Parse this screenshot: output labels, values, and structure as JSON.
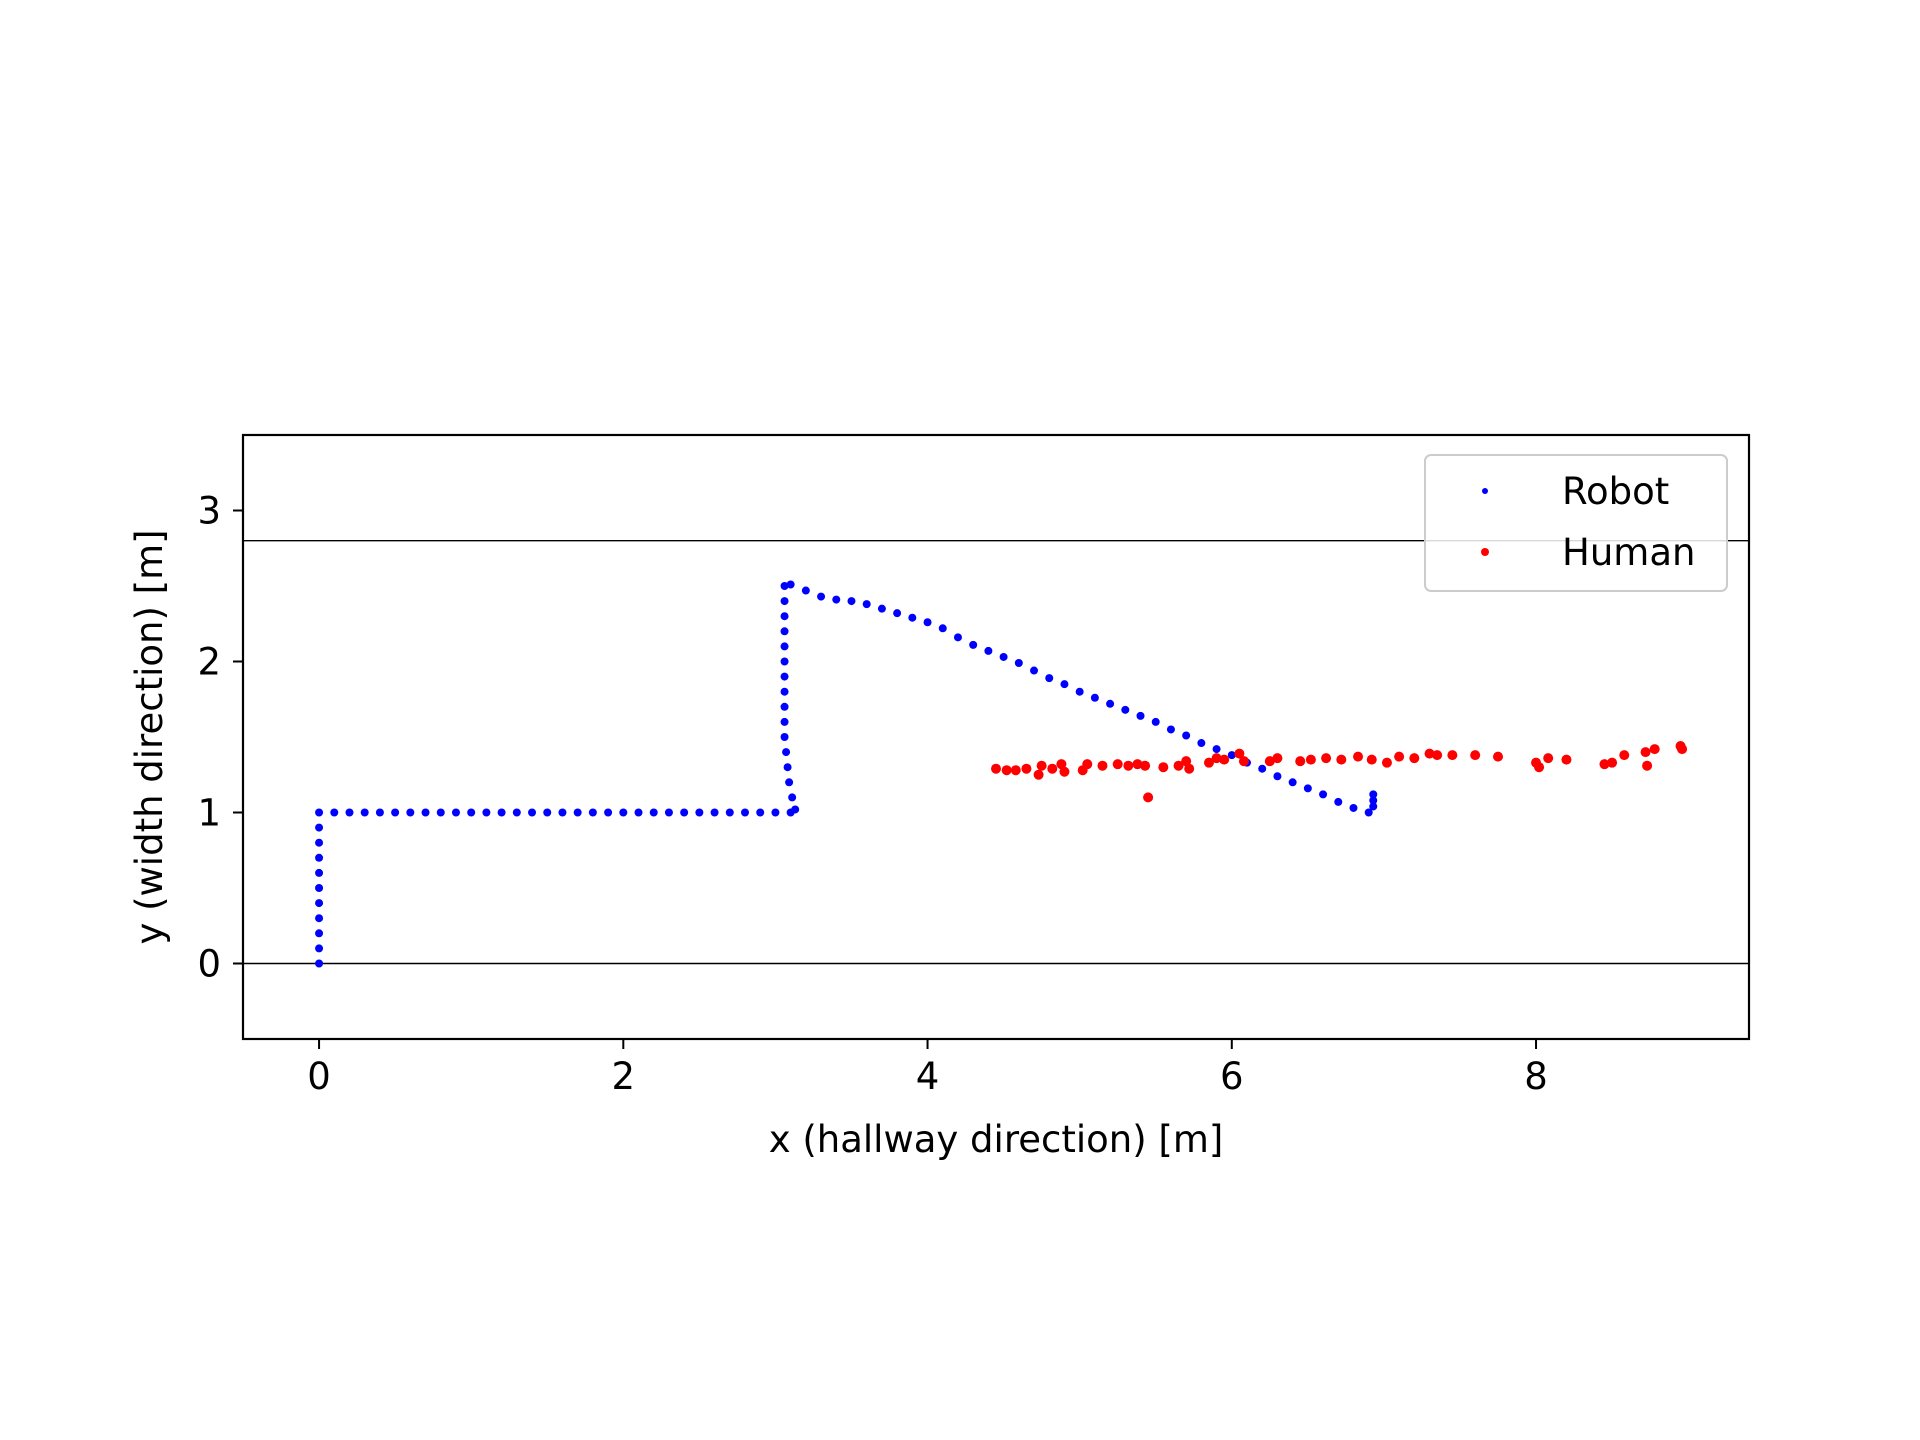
{
  "chart_data": {
    "type": "scatter",
    "title": "",
    "xlabel": "x (hallway direction) [m]",
    "ylabel": "y (width direction) [m]",
    "xlim": [
      -0.5,
      9.4
    ],
    "ylim": [
      -0.5,
      3.5
    ],
    "xticks": [
      0,
      2,
      4,
      6,
      8
    ],
    "yticks": [
      0,
      1,
      2,
      3
    ],
    "grid": false,
    "legend_position": "top-right",
    "hlines": [
      0,
      2.8
    ],
    "series": [
      {
        "name": "Robot",
        "color": "#0000ff",
        "points": [
          [
            0.0,
            0.0
          ],
          [
            0.0,
            0.1
          ],
          [
            0.0,
            0.2
          ],
          [
            0.0,
            0.3
          ],
          [
            0.0,
            0.4
          ],
          [
            0.0,
            0.5
          ],
          [
            0.0,
            0.6
          ],
          [
            0.0,
            0.7
          ],
          [
            0.0,
            0.8
          ],
          [
            0.0,
            0.9
          ],
          [
            0.0,
            1.0
          ],
          [
            0.1,
            1.0
          ],
          [
            0.2,
            1.0
          ],
          [
            0.3,
            1.0
          ],
          [
            0.4,
            1.0
          ],
          [
            0.5,
            1.0
          ],
          [
            0.6,
            1.0
          ],
          [
            0.7,
            1.0
          ],
          [
            0.8,
            1.0
          ],
          [
            0.9,
            1.0
          ],
          [
            1.0,
            1.0
          ],
          [
            1.1,
            1.0
          ],
          [
            1.2,
            1.0
          ],
          [
            1.3,
            1.0
          ],
          [
            1.4,
            1.0
          ],
          [
            1.5,
            1.0
          ],
          [
            1.6,
            1.0
          ],
          [
            1.7,
            1.0
          ],
          [
            1.8,
            1.0
          ],
          [
            1.9,
            1.0
          ],
          [
            2.0,
            1.0
          ],
          [
            2.1,
            1.0
          ],
          [
            2.2,
            1.0
          ],
          [
            2.3,
            1.0
          ],
          [
            2.4,
            1.0
          ],
          [
            2.5,
            1.0
          ],
          [
            2.6,
            1.0
          ],
          [
            2.7,
            1.0
          ],
          [
            2.8,
            1.0
          ],
          [
            2.9,
            1.0
          ],
          [
            3.0,
            1.0
          ],
          [
            3.1,
            1.0
          ],
          [
            3.13,
            1.02
          ],
          [
            3.11,
            1.1
          ],
          [
            3.09,
            1.2
          ],
          [
            3.08,
            1.3
          ],
          [
            3.07,
            1.4
          ],
          [
            3.06,
            1.5
          ],
          [
            3.06,
            1.6
          ],
          [
            3.06,
            1.7
          ],
          [
            3.06,
            1.8
          ],
          [
            3.06,
            1.9
          ],
          [
            3.06,
            2.0
          ],
          [
            3.06,
            2.1
          ],
          [
            3.06,
            2.2
          ],
          [
            3.06,
            2.3
          ],
          [
            3.06,
            2.4
          ],
          [
            3.06,
            2.5
          ],
          [
            3.1,
            2.51
          ],
          [
            3.2,
            2.47
          ],
          [
            3.3,
            2.43
          ],
          [
            3.4,
            2.41
          ],
          [
            3.5,
            2.4
          ],
          [
            3.6,
            2.38
          ],
          [
            3.7,
            2.35
          ],
          [
            3.8,
            2.32
          ],
          [
            3.9,
            2.29
          ],
          [
            4.0,
            2.26
          ],
          [
            4.1,
            2.22
          ],
          [
            4.2,
            2.16
          ],
          [
            4.3,
            2.11
          ],
          [
            4.4,
            2.07
          ],
          [
            4.5,
            2.03
          ],
          [
            4.6,
            1.99
          ],
          [
            4.7,
            1.94
          ],
          [
            4.8,
            1.89
          ],
          [
            4.9,
            1.85
          ],
          [
            5.0,
            1.8
          ],
          [
            5.1,
            1.76
          ],
          [
            5.2,
            1.72
          ],
          [
            5.3,
            1.68
          ],
          [
            5.4,
            1.64
          ],
          [
            5.5,
            1.6
          ],
          [
            5.6,
            1.55
          ],
          [
            5.7,
            1.51
          ],
          [
            5.8,
            1.46
          ],
          [
            5.9,
            1.42
          ],
          [
            6.0,
            1.38
          ],
          [
            6.1,
            1.33
          ],
          [
            6.2,
            1.29
          ],
          [
            6.3,
            1.24
          ],
          [
            6.4,
            1.2
          ],
          [
            6.5,
            1.16
          ],
          [
            6.6,
            1.12
          ],
          [
            6.7,
            1.07
          ],
          [
            6.8,
            1.03
          ],
          [
            6.9,
            1.0
          ],
          [
            6.93,
            1.04
          ],
          [
            6.93,
            1.08
          ],
          [
            6.93,
            1.12
          ]
        ]
      },
      {
        "name": "Human",
        "color": "#ff0000",
        "points": [
          [
            4.45,
            1.29
          ],
          [
            4.52,
            1.28
          ],
          [
            4.58,
            1.28
          ],
          [
            4.65,
            1.29
          ],
          [
            4.73,
            1.25
          ],
          [
            4.75,
            1.31
          ],
          [
            4.82,
            1.29
          ],
          [
            4.88,
            1.32
          ],
          [
            4.9,
            1.27
          ],
          [
            5.02,
            1.28
          ],
          [
            5.05,
            1.32
          ],
          [
            5.15,
            1.31
          ],
          [
            5.25,
            1.32
          ],
          [
            5.32,
            1.31
          ],
          [
            5.38,
            1.32
          ],
          [
            5.43,
            1.31
          ],
          [
            5.45,
            1.1
          ],
          [
            5.55,
            1.3
          ],
          [
            5.65,
            1.31
          ],
          [
            5.7,
            1.34
          ],
          [
            5.72,
            1.29
          ],
          [
            5.85,
            1.33
          ],
          [
            5.9,
            1.36
          ],
          [
            5.95,
            1.35
          ],
          [
            6.05,
            1.39
          ],
          [
            6.08,
            1.34
          ],
          [
            6.25,
            1.34
          ],
          [
            6.3,
            1.36
          ],
          [
            6.45,
            1.34
          ],
          [
            6.52,
            1.35
          ],
          [
            6.62,
            1.36
          ],
          [
            6.72,
            1.35
          ],
          [
            6.83,
            1.37
          ],
          [
            6.92,
            1.35
          ],
          [
            7.02,
            1.33
          ],
          [
            7.1,
            1.37
          ],
          [
            7.2,
            1.36
          ],
          [
            7.3,
            1.39
          ],
          [
            7.35,
            1.38
          ],
          [
            7.45,
            1.38
          ],
          [
            7.6,
            1.38
          ],
          [
            7.75,
            1.37
          ],
          [
            8.0,
            1.33
          ],
          [
            8.02,
            1.3
          ],
          [
            8.08,
            1.36
          ],
          [
            8.2,
            1.35
          ],
          [
            8.45,
            1.32
          ],
          [
            8.5,
            1.33
          ],
          [
            8.58,
            1.38
          ],
          [
            8.72,
            1.4
          ],
          [
            8.73,
            1.31
          ],
          [
            8.78,
            1.42
          ],
          [
            8.95,
            1.44
          ],
          [
            8.96,
            1.42
          ]
        ]
      }
    ]
  }
}
